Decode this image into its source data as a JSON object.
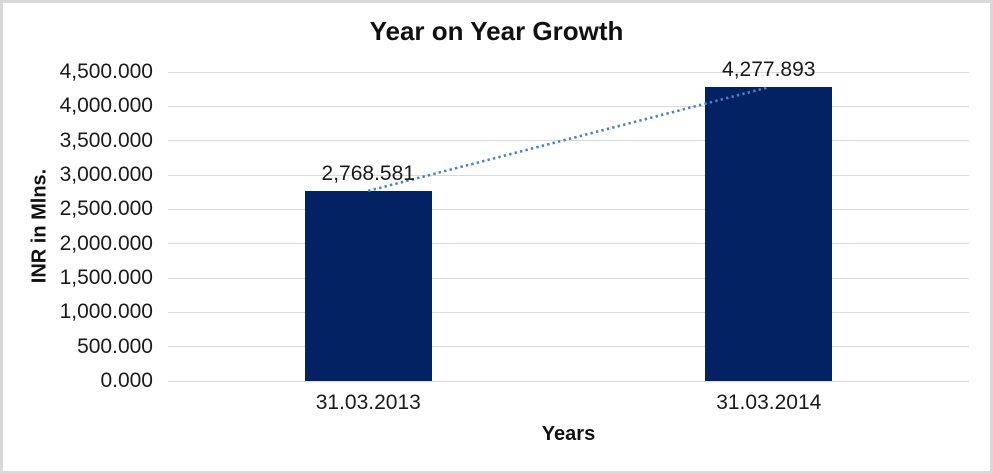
{
  "chart_data": {
    "type": "bar",
    "title": "Year on Year Growth",
    "xlabel": "Years",
    "ylabel": "INR in Mlns.",
    "categories": [
      "31.03.2013",
      "31.03.2014"
    ],
    "values": [
      2768.581,
      4277.893
    ],
    "value_labels": [
      "2,768.581",
      "4,277.893"
    ],
    "ylim": [
      0,
      4500
    ],
    "yticks": [
      {
        "value": 0,
        "label": "0.000"
      },
      {
        "value": 500,
        "label": "500.000"
      },
      {
        "value": 1000,
        "label": "1,000.000"
      },
      {
        "value": 1500,
        "label": "1,500.000"
      },
      {
        "value": 2000,
        "label": "2,000.000"
      },
      {
        "value": 2500,
        "label": "2,500.000"
      },
      {
        "value": 3000,
        "label": "3,000.000"
      },
      {
        "value": 3500,
        "label": "3,500.000"
      },
      {
        "value": 4000,
        "label": "4,000.000"
      },
      {
        "value": 4500,
        "label": "4,500.000"
      }
    ],
    "grid": true,
    "legend": "none",
    "trendline": {
      "style": "dotted",
      "color": "#4E80C8"
    },
    "colors": {
      "bar": "#032264",
      "gridline": "#D9D9D9",
      "frame_border": "#D9D9D9"
    }
  }
}
